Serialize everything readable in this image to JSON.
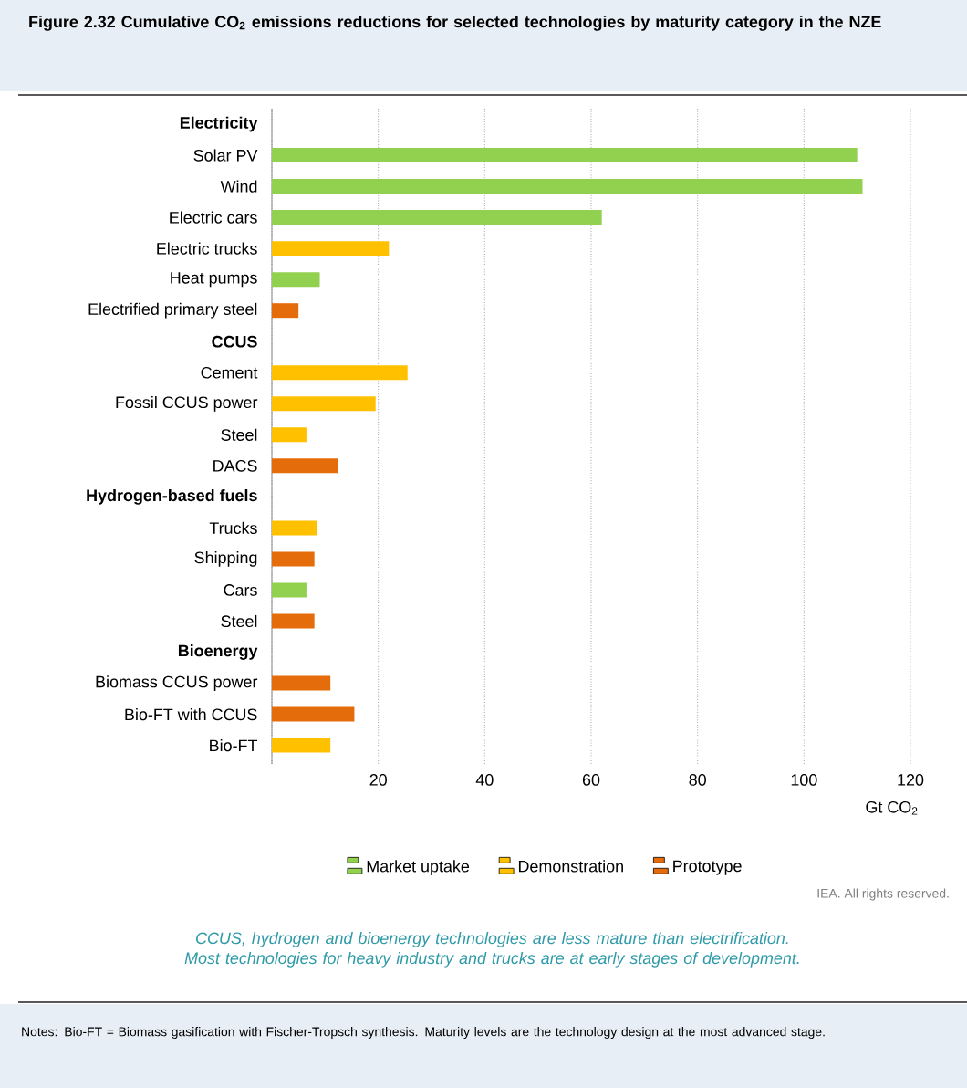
{
  "chart_data": {
    "type": "bar",
    "orientation": "horizontal",
    "title": "Figure 2.32 Cumulative CO$_{2}$ emissions reductions for selected technologies by maturity category in the NZE",
    "categories": [
      "Electricity",
      "Solar PV",
      "Wind",
      "Electric cars",
      "Electric trucks",
      "Heat pumps",
      "Electrified primary steel",
      "CCUS",
      "Cement",
      "Fossil CCUS power",
      "Steel",
      "DACS",
      "Hydrogen-based fuels",
      "Trucks",
      "Shipping",
      "Cars",
      "Steel",
      "Bioenergy",
      "Biomass CCUS power",
      "Bio-FT with CCUS",
      "Bio-FT"
    ],
    "series": [
      {
        "name": "Market uptake",
        "color": "#92d050",
        "values": [
          null,
          110,
          111,
          62,
          null,
          9,
          null,
          null,
          null,
          null,
          null,
          null,
          null,
          null,
          null,
          6.5,
          null,
          null,
          null,
          null,
          null
        ]
      },
      {
        "name": "Demonstration",
        "color": "#ffc000",
        "values": [
          null,
          null,
          null,
          null,
          22,
          null,
          null,
          null,
          25.5,
          19.5,
          6.5,
          null,
          null,
          8.5,
          null,
          null,
          null,
          null,
          null,
          null,
          11
        ]
      },
      {
        "name": "Prototype",
        "color": "#e46c0a",
        "values": [
          null,
          null,
          null,
          null,
          null,
          null,
          5,
          null,
          null,
          null,
          null,
          12.5,
          null,
          null,
          8,
          null,
          8,
          null,
          11,
          15.5,
          null
        ]
      }
    ],
    "xlabel": "Gt CO$_{2}$",
    "xlim": [
      0,
      120
    ],
    "xticks": [
      {
        "value": 0,
        "label": null
      },
      20,
      40,
      60,
      80,
      100,
      120
    ],
    "grid": "x",
    "legend": "bottom",
    "annotations": [
      "IEA. All rights reserved.",
      "CCUS, hydrogen and bioenergy technologies are less mature than electrification. Most technologies for heavy industry and trucks are at early stages of development.",
      "Notes: Bio-FT = Biomass gasification with Fischer-Tropsch synthesis. Maturity levels are the technology design at the most advanced stage."
    ]
  }
}
